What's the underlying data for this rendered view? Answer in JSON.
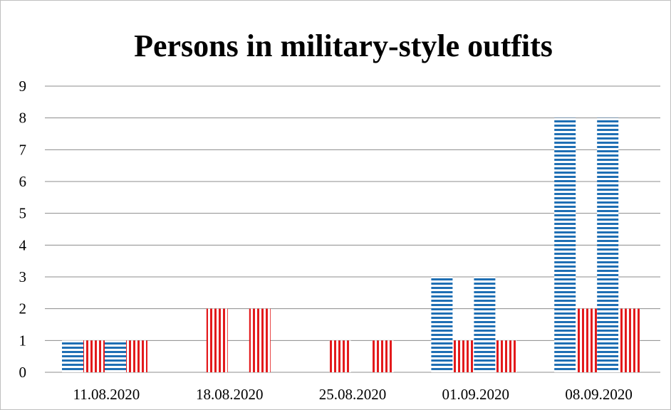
{
  "chart_data": {
    "type": "bar",
    "title": "Persons in military-style outfits",
    "xlabel": "",
    "ylabel": "",
    "categories": [
      "11.08.2020",
      "18.08.2020",
      "25.08.2020",
      "01.09.2020",
      "08.09.2020"
    ],
    "series": [
      {
        "color": "#1f6fb4",
        "pattern": "horizontal-stripes",
        "values": [
          1,
          0,
          0,
          3,
          8
        ]
      },
      {
        "color": "#e31a1c",
        "pattern": "vertical-stripes",
        "values": [
          1,
          2,
          1,
          1,
          2
        ]
      },
      {
        "color": "#1f6fb4",
        "pattern": "horizontal-stripes",
        "values": [
          1,
          0,
          0,
          3,
          8
        ]
      },
      {
        "color": "#e31a1c",
        "pattern": "vertical-stripes",
        "values": [
          1,
          2,
          1,
          1,
          2
        ]
      }
    ],
    "ylim": [
      0,
      9
    ],
    "yticks": [
      "0",
      "1",
      "2",
      "3",
      "4",
      "5",
      "6",
      "7",
      "8",
      "9"
    ],
    "grid": true,
    "legend": "none"
  }
}
